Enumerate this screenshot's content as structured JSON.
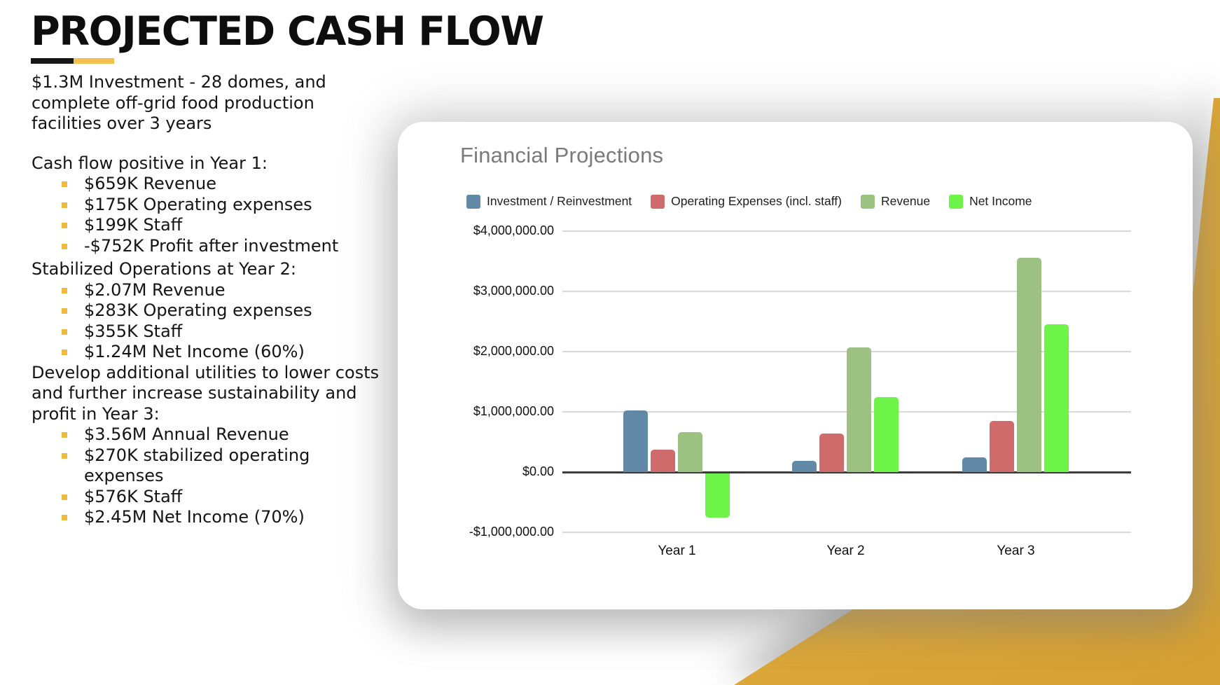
{
  "slide": {
    "title": "PROJECTED CASH FLOW",
    "intro": "$1.3M Investment - 28 domes, and complete off-grid food production facilities over 3 years",
    "sections": [
      {
        "heading": "Cash flow positive in Year 1:",
        "items": [
          "$659K Revenue",
          "$175K Operating expenses",
          "$199K Staff",
          "-$752K Profit after investment"
        ]
      },
      {
        "heading": "Stabilized Operations at Year 2:",
        "items": [
          "$2.07M Revenue",
          "$283K Operating expenses",
          "$355K Staff",
          "$1.24M Net Income (60%)"
        ]
      },
      {
        "heading": "Develop additional utilities to lower costs and further increase sustainability and profit in Year 3:",
        "items": [
          "$3.56M Annual Revenue",
          "$270K stabilized operating expenses",
          "$576K Staff",
          "$2.45M Net Income (70%)"
        ]
      }
    ],
    "colors": {
      "underline_black": "#161616",
      "underline_yellow": "#f2c14e",
      "bullet_yellow": "#f0ba3e",
      "deco_yellow": "#e0ad3d"
    }
  },
  "chart_data": {
    "type": "bar",
    "title": "Financial Projections",
    "categories": [
      "Year 1",
      "Year 2",
      "Year 3"
    ],
    "series": [
      {
        "name": "Investment / Reinvestment",
        "color": "#6189a6",
        "values": [
          1020000,
          190000,
          250000
        ]
      },
      {
        "name": "Operating Expenses (incl. staff)",
        "color": "#cf6b6b",
        "values": [
          374000,
          638000,
          846000
        ]
      },
      {
        "name": "Revenue",
        "color": "#9dc183",
        "values": [
          659000,
          2070000,
          3560000
        ]
      },
      {
        "name": "Net Income",
        "color": "#6ef449",
        "values": [
          -752000,
          1240000,
          2450000
        ]
      }
    ],
    "y_ticks": [
      {
        "label": "$4,000,000.00",
        "value": 4000000
      },
      {
        "label": "$3,000,000.00",
        "value": 3000000
      },
      {
        "label": "$2,000,000.00",
        "value": 2000000
      },
      {
        "label": "$1,000,000.00",
        "value": 1000000
      },
      {
        "label": "$0.00",
        "value": 0
      },
      {
        "label": "-$1,000,000.00",
        "value": -1000000
      }
    ],
    "ylim": [
      -1000000,
      4000000
    ],
    "grid": true,
    "legend_position": "top"
  }
}
